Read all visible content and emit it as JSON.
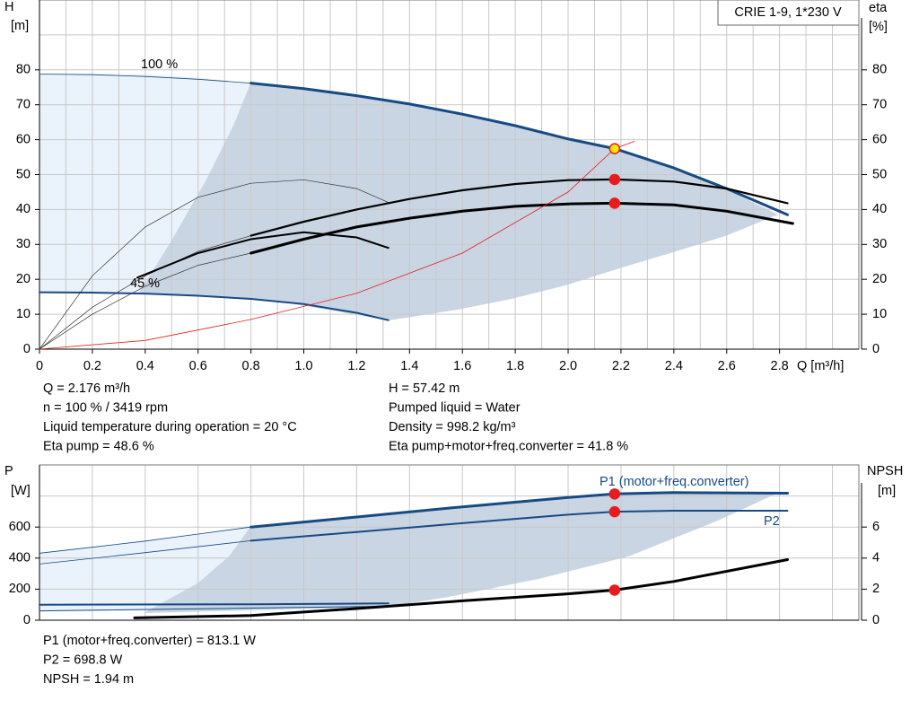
{
  "chart_data": [
    {
      "type": "line",
      "title": "CRIE 1-9, 1*230 V",
      "y_label": "H",
      "y_unit": "[m]",
      "y2_label": "eta",
      "y2_unit": "[%]",
      "x_label": "Q [m³/h]",
      "xlim": [
        0,
        3.1
      ],
      "xticks": [
        0,
        0.2,
        0.4,
        0.6,
        0.8,
        {
          "value": 1,
          "label": "1.0"
        },
        1.2,
        1.4,
        1.6,
        1.8,
        {
          "value": 2,
          "label": "2.0"
        },
        2.2,
        2.4,
        2.6,
        2.8
      ],
      "xgrid": [
        0.1,
        0.3,
        0.5,
        0.7,
        0.9,
        1.1,
        1.3,
        1.5,
        1.7,
        1.9,
        2.1,
        2.3,
        2.5,
        2.7,
        2.9,
        3.0
      ],
      "ylim": [
        0,
        100
      ],
      "yticks": [
        0,
        10,
        20,
        30,
        40,
        50,
        60,
        70,
        80
      ],
      "ygrid": [
        90
      ],
      "y2lim": [
        0,
        100
      ],
      "y2ticks": [
        0,
        10,
        20,
        30,
        40,
        50,
        60,
        70,
        80
      ],
      "series": [
        {
          "label": "100 %",
          "color": "#174a84",
          "width": 0.8,
          "x": [
            0,
            0.2,
            0.4,
            0.6,
            0.8
          ],
          "values": [
            78.8,
            78.6,
            78.1,
            77.3,
            76.2
          ]
        },
        {
          "color": "#174a84",
          "width": 3,
          "x": [
            0.8,
            1.0,
            1.2,
            1.4,
            1.6,
            1.8,
            2.0,
            2.176,
            2.4,
            2.6,
            2.83
          ],
          "values": [
            76.2,
            74.6,
            72.6,
            70.2,
            67.3,
            64.0,
            60.2,
            57.42,
            51.9,
            46,
            38.5
          ]
        },
        {
          "label": "45 %",
          "color": "#174a84",
          "width": 2,
          "x": [
            0,
            0.2,
            0.4,
            0.6,
            0.8,
            1.0,
            1.2,
            1.32
          ],
          "values": [
            16.3,
            16.2,
            15.9,
            15.3,
            14.4,
            12.9,
            10.4,
            8.3
          ]
        },
        {
          "color": "#333333",
          "width": 0.7,
          "x": [
            0,
            0.2,
            0.4,
            0.6,
            0.8
          ],
          "values": [
            0,
            12,
            21,
            28,
            32.5
          ]
        },
        {
          "color": "#000000",
          "width": 2.2,
          "x": [
            0.8,
            1.0,
            1.2,
            1.4,
            1.6,
            1.8,
            2.0,
            2.176,
            2.4,
            2.6,
            2.83
          ],
          "values": [
            32.5,
            36.5,
            40,
            43,
            45.5,
            47.3,
            48.4,
            48.6,
            48,
            46,
            41.8
          ]
        },
        {
          "color": "#333333",
          "width": 0.7,
          "x": [
            0,
            0.2,
            0.4,
            0.6,
            0.8
          ],
          "values": [
            0,
            10,
            18,
            24,
            27.5
          ]
        },
        {
          "color": "#000000",
          "width": 3,
          "x": [
            0.8,
            1.0,
            1.2,
            1.4,
            1.6,
            1.8,
            2.0,
            2.176,
            2.4,
            2.6,
            2.85
          ],
          "values": [
            27.5,
            31.5,
            35,
            37.5,
            39.5,
            40.9,
            41.6,
            41.8,
            41.3,
            39.5,
            36
          ]
        },
        {
          "color": "#333333",
          "width": 0.7,
          "x": [
            0,
            0.2,
            0.4,
            0.6,
            0.8,
            1.0,
            1.2,
            1.32
          ],
          "values": [
            0,
            21,
            35,
            43.5,
            47.5,
            48.5,
            46,
            42
          ]
        },
        {
          "color": "#000000",
          "width": 2,
          "x": [
            0.37,
            0.6,
            0.8,
            1.0,
            1.2,
            1.32
          ],
          "values": [
            20.5,
            27.5,
            31.5,
            33.5,
            32,
            29
          ]
        },
        {
          "color": "#e81c1c",
          "width": 0.8,
          "x": [
            0,
            0.4,
            0.8,
            1.2,
            1.6,
            2.0,
            2.176,
            2.25
          ],
          "values": [
            0,
            2.5,
            8.5,
            16,
            27.5,
            45,
            57.42,
            59.5
          ]
        }
      ],
      "points": [
        {
          "x": 2.176,
          "y": 57.42,
          "color": "#ffe800"
        },
        {
          "x": 2.176,
          "y": 48.6,
          "color": "#e81c1c"
        },
        {
          "x": 2.176,
          "y": 41.8,
          "color": "#e81c1c"
        }
      ],
      "info_left": [
        "Q = 2.176 m³/h",
        "n = 100 % / 3419 rpm",
        "Liquid temperature during operation = 20 °C",
        "Eta pump = 48.6 %"
      ],
      "info_right": [
        "H = 57.42 m",
        "Pumped liquid = Water",
        "Density = 998.2 kg/m³",
        "Eta pump+motor+freq.converter = 41.8 %"
      ]
    },
    {
      "type": "line",
      "y_label": "P",
      "y_unit": "[W]",
      "y2_label": "NPSH",
      "y2_unit": "[m]",
      "xlim": [
        0,
        3.1
      ],
      "xgrid": [
        0.2,
        0.4,
        0.6,
        0.8,
        1.0,
        1.2,
        1.4,
        1.6,
        1.8,
        2.0,
        2.2,
        2.4,
        2.6,
        2.8,
        3.0
      ],
      "ylim": [
        0,
        1000
      ],
      "yticks": [
        0,
        200,
        400,
        600
      ],
      "ygrid": [
        800
      ],
      "y2lim": [
        0,
        10
      ],
      "y2ticks": [
        0,
        2,
        4,
        6
      ],
      "series": [
        {
          "color": "#174a84",
          "width": 0.8,
          "x": [
            0,
            0.2,
            0.4,
            0.6,
            0.8
          ],
          "values": [
            432,
            470,
            510,
            555,
            600
          ]
        },
        {
          "name": "P1 (motor+freq.converter)",
          "color": "#174a84",
          "width": 3,
          "x": [
            0.8,
            1.2,
            1.6,
            2.0,
            2.176,
            2.4,
            2.83
          ],
          "values": [
            600,
            665,
            730,
            790,
            813.1,
            822,
            818
          ]
        },
        {
          "color": "#174a84",
          "width": 0.8,
          "x": [
            0,
            0.4,
            0.8
          ],
          "values": [
            362,
            435,
            512
          ]
        },
        {
          "name": "P2",
          "color": "#174a84",
          "width": 2,
          "x": [
            0.8,
            1.2,
            1.6,
            2.0,
            2.176,
            2.4,
            2.83
          ],
          "values": [
            512,
            568,
            625,
            680,
            698.8,
            705,
            705
          ]
        },
        {
          "color": "#174a84",
          "width": 2,
          "x": [
            0,
            0.8,
            1.32
          ],
          "values": [
            100,
            103,
            108
          ]
        },
        {
          "color": "#174a84",
          "width": 1,
          "x": [
            0,
            0.8,
            1.32
          ],
          "values": [
            60,
            78,
            90
          ]
        },
        {
          "axis": "y2",
          "color": "#000000",
          "width": 3,
          "x": [
            0.36,
            0.8,
            1.2,
            1.6,
            2.0,
            2.176,
            2.4,
            2.83
          ],
          "values": [
            0.15,
            0.3,
            0.75,
            1.25,
            1.7,
            1.94,
            2.5,
            3.9
          ]
        }
      ],
      "points": [
        {
          "x": 2.176,
          "y": 813.1,
          "color": "#e81c1c"
        },
        {
          "x": 2.176,
          "y": 698.8,
          "color": "#e81c1c"
        },
        {
          "x": 2.176,
          "y": 1.94,
          "color": "#e81c1c",
          "axis": "y2"
        }
      ],
      "info_left": [
        "P1 (motor+freq.converter) = 813.1 W",
        "P2 = 698.8 W",
        "NPSH = 1.94 m"
      ]
    }
  ]
}
